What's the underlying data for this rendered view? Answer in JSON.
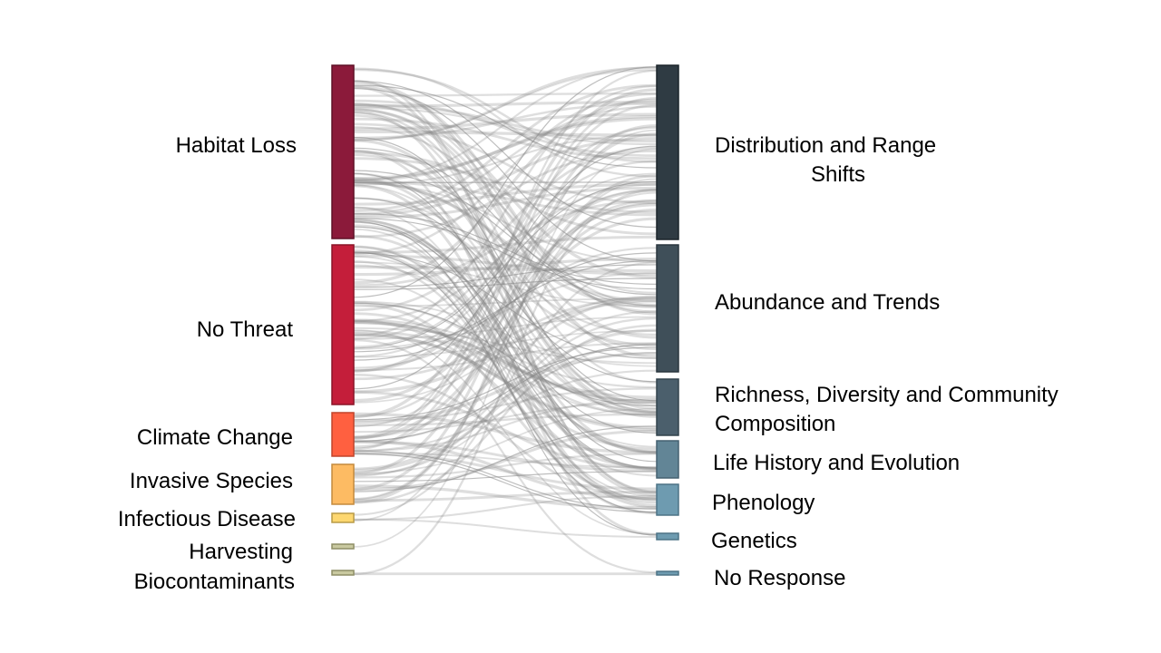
{
  "diagram": {
    "type": "sankey",
    "link_color": "#888888",
    "sources": [
      {
        "id": "habitat-loss",
        "label": "Habitat Loss",
        "color": "#8B1A3A",
        "stroke": "#5e1026"
      },
      {
        "id": "no-threat",
        "label": "No Threat",
        "color": "#C41E3A",
        "stroke": "#8a1327"
      },
      {
        "id": "climate-change",
        "label": "Climate Change",
        "color": "#FF6040",
        "stroke": "#c0442a"
      },
      {
        "id": "invasive-species",
        "label": "Invasive Species",
        "color": "#FDBB63",
        "stroke": "#c48a3d"
      },
      {
        "id": "infectious-disease",
        "label": "Infectious Disease",
        "color": "#FDD770",
        "stroke": "#b89a45"
      },
      {
        "id": "harvesting",
        "label": "Harvesting",
        "color": "#C9C9A0",
        "stroke": "#8e8e66"
      },
      {
        "id": "biocontaminants",
        "label": "Biocontaminants",
        "color": "#C9C9A0",
        "stroke": "#8e8e66"
      }
    ],
    "targets": [
      {
        "id": "distribution",
        "label_lines": [
          "Distribution and Range",
          "Shifts"
        ],
        "color": "#2F3B43",
        "stroke": "#1c252b"
      },
      {
        "id": "abundance",
        "label_lines": [
          "Abundance and Trends"
        ],
        "color": "#3F4F59",
        "stroke": "#2a363e"
      },
      {
        "id": "richness",
        "label_lines": [
          "Richness, Diversity and Community",
          "Composition"
        ],
        "color": "#4B5F6C",
        "stroke": "#33434d"
      },
      {
        "id": "life-history",
        "label_lines": [
          "Life History and Evolution"
        ],
        "color": "#628596",
        "stroke": "#456170"
      },
      {
        "id": "phenology",
        "label_lines": [
          "Phenology"
        ],
        "color": "#6E9BB0",
        "stroke": "#4d7386"
      },
      {
        "id": "genetics",
        "label_lines": [
          "Genetics"
        ],
        "color": "#6E9BB0",
        "stroke": "#4d7386"
      },
      {
        "id": "no-response",
        "label_lines": [
          "No Response"
        ],
        "color": "#6E9BB0",
        "stroke": "#4d7386"
      }
    ]
  }
}
